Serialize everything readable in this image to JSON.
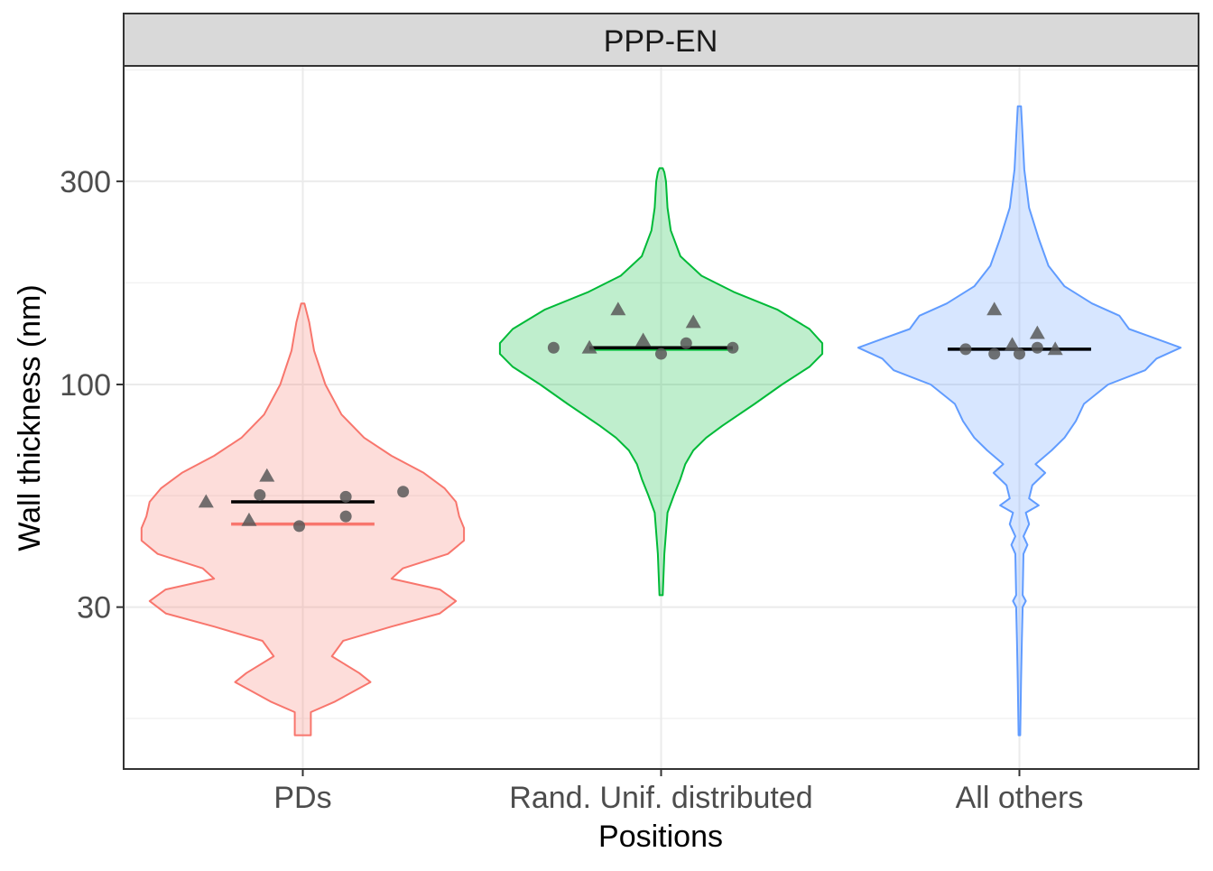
{
  "chart_data": {
    "type": "violin",
    "facet": "PPP-EN",
    "xlabel": "Positions",
    "ylabel": "Wall thickness (nm)",
    "y_scale": "log10",
    "ylim": [
      12.5,
      560
    ],
    "y_ticks": [
      30,
      100,
      300
    ],
    "y_tick_labels": [
      "30",
      "100",
      "300"
    ],
    "grid": true,
    "categories": [
      "PDs",
      "Rand. Unif. distributed",
      "All others"
    ],
    "colors": {
      "PDs": "#F8766D",
      "Rand. Unif. distributed": "#00BA38",
      "All others": "#619CFF"
    },
    "groups": [
      {
        "category": "PDs",
        "range": [
          15,
          155
        ],
        "median": 47,
        "mean_line": 53,
        "density": [
          [
            15,
            0.05
          ],
          [
            17,
            0.05
          ],
          [
            18,
            0.2
          ],
          [
            20,
            0.42
          ],
          [
            21,
            0.35
          ],
          [
            23,
            0.18
          ],
          [
            25,
            0.25
          ],
          [
            27,
            0.55
          ],
          [
            29,
            0.85
          ],
          [
            31,
            0.95
          ],
          [
            33,
            0.85
          ],
          [
            35,
            0.55
          ],
          [
            37,
            0.62
          ],
          [
            40,
            0.9
          ],
          [
            43,
            1.0
          ],
          [
            46,
            1.0
          ],
          [
            49,
            0.97
          ],
          [
            53,
            0.95
          ],
          [
            57,
            0.88
          ],
          [
            62,
            0.75
          ],
          [
            68,
            0.55
          ],
          [
            75,
            0.38
          ],
          [
            85,
            0.24
          ],
          [
            100,
            0.14
          ],
          [
            120,
            0.07
          ],
          [
            140,
            0.04
          ],
          [
            155,
            0.01
          ]
        ],
        "points": [
          {
            "shape": "triangle",
            "offset": -0.1,
            "value": 61
          },
          {
            "shape": "triangle",
            "offset": -0.27,
            "value": 53
          },
          {
            "shape": "circle",
            "offset": -0.12,
            "value": 55
          },
          {
            "shape": "circle",
            "offset": 0.12,
            "value": 54.5
          },
          {
            "shape": "circle",
            "offset": 0.28,
            "value": 56
          },
          {
            "shape": "triangle",
            "offset": -0.15,
            "value": 48
          },
          {
            "shape": "circle",
            "offset": -0.01,
            "value": 46.5
          },
          {
            "shape": "circle",
            "offset": 0.12,
            "value": 49
          }
        ]
      },
      {
        "category": "Rand. Unif. distributed",
        "range": [
          32,
          322
        ],
        "median": 121,
        "mean_line": 122,
        "density": [
          [
            32,
            0.01
          ],
          [
            40,
            0.02
          ],
          [
            50,
            0.04
          ],
          [
            55,
            0.08
          ],
          [
            60,
            0.12
          ],
          [
            65,
            0.15
          ],
          [
            70,
            0.2
          ],
          [
            75,
            0.28
          ],
          [
            80,
            0.38
          ],
          [
            90,
            0.58
          ],
          [
            100,
            0.75
          ],
          [
            110,
            0.92
          ],
          [
            118,
            1.0
          ],
          [
            125,
            1.0
          ],
          [
            135,
            0.92
          ],
          [
            150,
            0.72
          ],
          [
            165,
            0.45
          ],
          [
            180,
            0.25
          ],
          [
            200,
            0.12
          ],
          [
            230,
            0.06
          ],
          [
            260,
            0.04
          ],
          [
            300,
            0.03
          ],
          [
            315,
            0.02
          ],
          [
            322,
            0.01
          ]
        ],
        "points": [
          {
            "shape": "circle",
            "offset": -0.3,
            "value": 122
          },
          {
            "shape": "triangle",
            "offset": -0.2,
            "value": 122
          },
          {
            "shape": "triangle",
            "offset": -0.05,
            "value": 127
          },
          {
            "shape": "circle",
            "offset": 0.0,
            "value": 118
          },
          {
            "shape": "circle",
            "offset": 0.07,
            "value": 125
          },
          {
            "shape": "circle",
            "offset": 0.2,
            "value": 122
          },
          {
            "shape": "triangle",
            "offset": -0.12,
            "value": 150
          },
          {
            "shape": "triangle",
            "offset": 0.09,
            "value": 140
          }
        ]
      },
      {
        "category": "All others",
        "range": [
          15,
          450
        ],
        "median": 121,
        "mean_line": 121,
        "density": [
          [
            15,
            0.005
          ],
          [
            20,
            0.01
          ],
          [
            25,
            0.015
          ],
          [
            30,
            0.02
          ],
          [
            31,
            0.04
          ],
          [
            32,
            0.02
          ],
          [
            40,
            0.025
          ],
          [
            42,
            0.05
          ],
          [
            44,
            0.025
          ],
          [
            47,
            0.06
          ],
          [
            50,
            0.04
          ],
          [
            52,
            0.12
          ],
          [
            54,
            0.06
          ],
          [
            58,
            0.08
          ],
          [
            62,
            0.16
          ],
          [
            65,
            0.1
          ],
          [
            70,
            0.2
          ],
          [
            75,
            0.28
          ],
          [
            82,
            0.35
          ],
          [
            90,
            0.4
          ],
          [
            100,
            0.55
          ],
          [
            108,
            0.78
          ],
          [
            115,
            0.85
          ],
          [
            122,
            1.0
          ],
          [
            128,
            0.85
          ],
          [
            135,
            0.68
          ],
          [
            145,
            0.62
          ],
          [
            155,
            0.45
          ],
          [
            170,
            0.28
          ],
          [
            190,
            0.18
          ],
          [
            220,
            0.12
          ],
          [
            260,
            0.06
          ],
          [
            320,
            0.03
          ],
          [
            380,
            0.02
          ],
          [
            450,
            0.01
          ]
        ],
        "points": [
          {
            "shape": "circle",
            "offset": -0.15,
            "value": 121
          },
          {
            "shape": "circle",
            "offset": -0.07,
            "value": 118
          },
          {
            "shape": "triangle",
            "offset": -0.02,
            "value": 124
          },
          {
            "shape": "circle",
            "offset": 0.0,
            "value": 118
          },
          {
            "shape": "circle",
            "offset": 0.05,
            "value": 122
          },
          {
            "shape": "triangle",
            "offset": 0.1,
            "value": 121
          },
          {
            "shape": "triangle",
            "offset": -0.07,
            "value": 150
          },
          {
            "shape": "triangle",
            "offset": 0.05,
            "value": 132
          }
        ]
      }
    ]
  }
}
